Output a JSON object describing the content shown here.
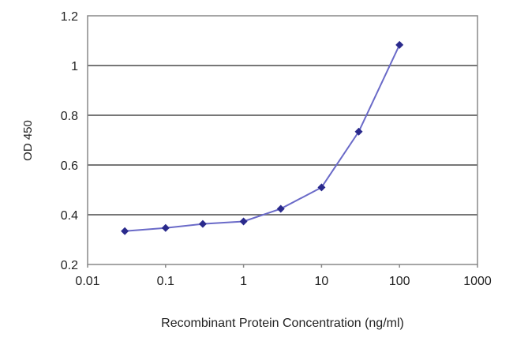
{
  "chart_data": {
    "type": "line",
    "title": "",
    "xlabel": "Recombinant Protein Concentration (ng/ml)",
    "ylabel": "OD 450",
    "x_scale": "log",
    "xlim": [
      0.01,
      1000
    ],
    "ylim": [
      0.2,
      1.2
    ],
    "x_ticks": [
      "0.01",
      "0.1",
      "1",
      "10",
      "100",
      "1000"
    ],
    "y_ticks": [
      "0.2",
      "0.4",
      "0.6",
      "0.8",
      "1",
      "1.2"
    ],
    "grid": "horizontal",
    "legend": "none",
    "series": [
      {
        "color": "#2a2a8c",
        "x": [
          0.03,
          0.1,
          0.3,
          1,
          3,
          10,
          30,
          100
        ],
        "y": [
          0.334,
          0.347,
          0.363,
          0.373,
          0.424,
          0.51,
          0.734,
          1.083
        ]
      }
    ]
  }
}
